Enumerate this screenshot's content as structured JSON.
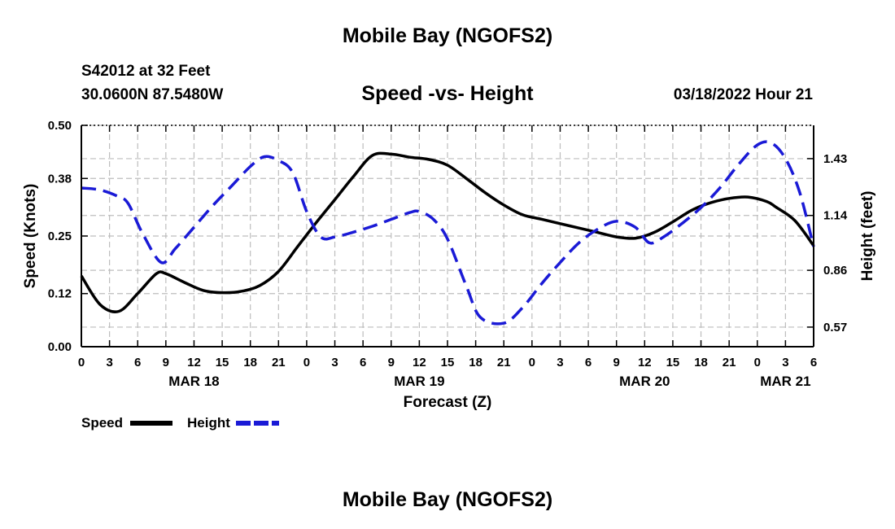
{
  "header": {
    "title": "Mobile Bay (NGOFS2)",
    "station": "S42012 at 32 Feet",
    "coords": "30.0600N  87.5480W",
    "subtitle": "Speed -vs- Height",
    "datetime": "03/18/2022 Hour 21"
  },
  "footer": {
    "title": "Mobile Bay (NGOFS2)"
  },
  "chart_data": {
    "type": "line",
    "title": "Speed -vs- Height",
    "xlabel": "Forecast (Z)",
    "ylabel_left": "Speed (Knots)",
    "ylabel_right": "Height (feet)",
    "x_unit": "hours since 03/18 00Z",
    "xlim": [
      0,
      78
    ],
    "ylim_left": [
      0,
      0.5
    ],
    "ylim_right": [
      0.47,
      1.6
    ],
    "x_ticks": [
      0,
      3,
      6,
      9,
      12,
      15,
      18,
      21,
      24,
      27,
      30,
      33,
      36,
      39,
      42,
      45,
      48,
      51,
      54,
      57,
      60,
      63,
      66,
      69,
      72,
      75,
      78
    ],
    "x_tick_labels": [
      "0",
      "3",
      "6",
      "9",
      "12",
      "15",
      "18",
      "21",
      "0",
      "3",
      "6",
      "9",
      "12",
      "15",
      "18",
      "21",
      "0",
      "3",
      "6",
      "9",
      "12",
      "15",
      "18",
      "21",
      "0",
      "3",
      "6"
    ],
    "day_labels": [
      {
        "x": 12,
        "label": "MAR 18"
      },
      {
        "x": 36,
        "label": "MAR 19"
      },
      {
        "x": 60,
        "label": "MAR 20"
      },
      {
        "x": 75,
        "label": "MAR 21"
      }
    ],
    "y_left_ticks": [
      0.0,
      0.12,
      0.25,
      0.38,
      0.5
    ],
    "y_left_tick_labels": [
      "0.00",
      "0.12",
      "0.25",
      "0.38",
      "0.50"
    ],
    "y_right_ticks": [
      0.57,
      0.86,
      1.14,
      1.43
    ],
    "y_right_tick_labels": [
      "0.57",
      "0.86",
      "1.14",
      "1.43"
    ],
    "grid": true,
    "legend_position": "bottom-left",
    "series": [
      {
        "name": "Speed",
        "axis": "left",
        "color": "#000000",
        "dash": "solid",
        "x": [
          0,
          2,
          4,
          6,
          8,
          9,
          11,
          13,
          15,
          17,
          19,
          21,
          23,
          25,
          27,
          29,
          31,
          33,
          35,
          37,
          39,
          41,
          43,
          45,
          47,
          49,
          51,
          53,
          55,
          57,
          59,
          61,
          63,
          65,
          67,
          69,
          71,
          73,
          74,
          76,
          78
        ],
        "y": [
          0.16,
          0.095,
          0.08,
          0.12,
          0.165,
          0.165,
          0.145,
          0.127,
          0.122,
          0.125,
          0.138,
          0.17,
          0.225,
          0.28,
          0.332,
          0.385,
          0.432,
          0.435,
          0.428,
          0.423,
          0.41,
          0.38,
          0.348,
          0.32,
          0.298,
          0.288,
          0.278,
          0.268,
          0.258,
          0.248,
          0.245,
          0.258,
          0.282,
          0.308,
          0.325,
          0.335,
          0.338,
          0.328,
          0.315,
          0.285,
          0.228
        ]
      },
      {
        "name": "Height",
        "axis": "right",
        "color": "#1a1ad6",
        "dash": "dashed",
        "x": [
          0,
          2,
          4,
          5,
          6.5,
          8.5,
          10,
          12,
          14,
          16,
          18,
          19.5,
          21,
          22.5,
          24,
          25.5,
          27,
          29,
          31,
          33,
          35,
          36,
          37.5,
          39,
          41,
          42.5,
          45,
          47,
          49,
          51,
          53,
          55,
          57,
          59,
          60.5,
          62,
          64,
          66,
          68,
          70,
          72,
          73.5,
          75,
          76.5,
          78
        ],
        "y": [
          1.28,
          1.27,
          1.235,
          1.2,
          1.05,
          0.9,
          0.97,
          1.08,
          1.19,
          1.29,
          1.39,
          1.44,
          1.42,
          1.36,
          1.16,
          1.03,
          1.03,
          1.055,
          1.085,
          1.12,
          1.155,
          1.16,
          1.12,
          1.02,
          0.78,
          0.62,
          0.59,
          0.67,
          0.79,
          0.9,
          1.0,
          1.07,
          1.11,
          1.08,
          1.0,
          1.03,
          1.1,
          1.18,
          1.28,
          1.4,
          1.5,
          1.51,
          1.43,
          1.26,
          0.98
        ]
      }
    ]
  }
}
